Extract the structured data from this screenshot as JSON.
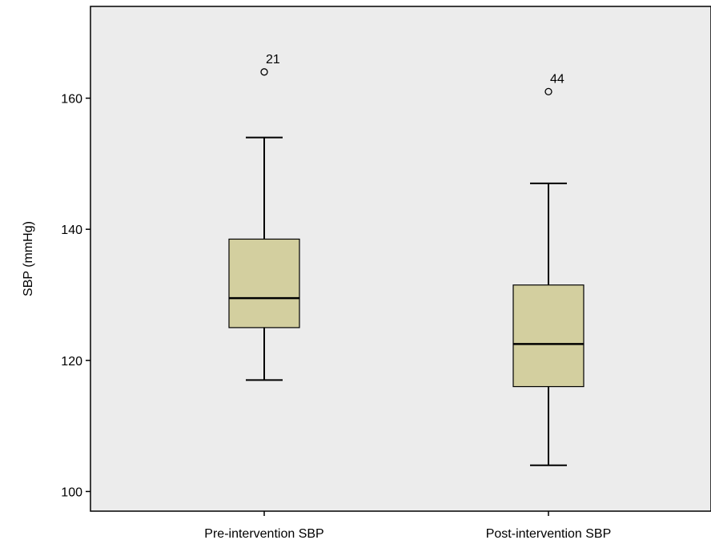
{
  "chart_data": {
    "type": "box",
    "title": "",
    "xlabel": "",
    "ylabel": "SBP (mmHg)",
    "ylim": [
      97,
      174
    ],
    "yticks": [
      100,
      120,
      140,
      160
    ],
    "grid": false,
    "plot_background": "#ececec",
    "box_fill": "#d3cf9f",
    "categories": [
      "Pre-intervention SBP",
      "Post-intervention SBP"
    ],
    "boxes": [
      {
        "category": "Pre-intervention SBP",
        "whisker_low": 117,
        "q1": 125,
        "median": 129.5,
        "q3": 138.5,
        "whisker_high": 154,
        "outliers": [
          {
            "value": 164,
            "label": "21"
          }
        ]
      },
      {
        "category": "Post-intervention SBP",
        "whisker_low": 104,
        "q1": 116,
        "median": 122.5,
        "q3": 131.5,
        "whisker_high": 147,
        "outliers": [
          {
            "value": 161,
            "label": "44"
          }
        ]
      }
    ]
  }
}
